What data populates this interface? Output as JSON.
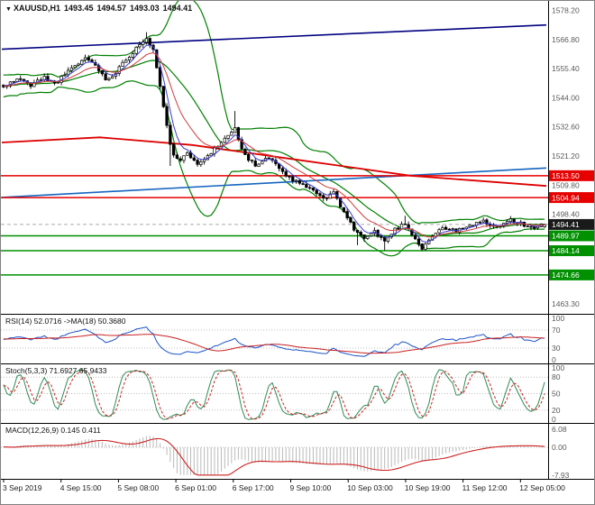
{
  "header": {
    "symbol": "XAUUSD,H1",
    "open": "1493.45",
    "high": "1494.57",
    "low": "1493.03",
    "close": "1494.41"
  },
  "price_axis": {
    "labels": [
      "1578.20",
      "1566.80",
      "1555.40",
      "1544.00",
      "1532.60",
      "1521.20",
      "1509.80",
      "1498.40",
      "1463.30"
    ],
    "badges": [
      {
        "value": "1513.50",
        "price": 1513.5,
        "color": "#e60000",
        "line": true,
        "current": false
      },
      {
        "value": "1504.94",
        "price": 1504.94,
        "color": "#e60000",
        "line": true,
        "current": false
      },
      {
        "value": "1494.41",
        "price": 1494.41,
        "color": "#1a1a1a",
        "line": false,
        "current": true
      },
      {
        "value": "1489.97",
        "price": 1489.97,
        "color": "#009000",
        "line": true,
        "current": false
      },
      {
        "value": "1484.14",
        "price": 1484.14,
        "color": "#009000",
        "line": true,
        "current": false
      },
      {
        "value": "1474.66",
        "price": 1474.66,
        "color": "#009000",
        "line": true,
        "current": false
      }
    ]
  },
  "time_axis": {
    "labels": [
      "3 Sep 2019",
      "4 Sep 15:00",
      "5 Sep 08:00",
      "6 Sep 01:00",
      "6 Sep 17:00",
      "9 Sep 10:00",
      "10 Sep 03:00",
      "10 Sep 19:00",
      "11 Sep 12:00",
      "12 Sep 05:00"
    ]
  },
  "indicators": {
    "rsi": {
      "label": "RSI(14) 52.0716 ->MA(18) 50.3680",
      "scale_labels": [
        "100",
        "70",
        "30",
        "0"
      ],
      "dotted_levels": [
        70,
        30
      ],
      "main_color": "#1a52c8",
      "ma_color": "#c82020"
    },
    "stoch": {
      "label": "Stoch(5,3,3) 71.6927 65.9433",
      "scale_labels": [
        "100",
        "80",
        "50",
        "20",
        "0"
      ],
      "dotted_levels": [
        80,
        50,
        20
      ],
      "k_color": "#2e8b57",
      "d_color": "#cc2222"
    },
    "macd": {
      "label": "MACD(12,26,9) 0.145 0.411",
      "scale_labels": [
        "6.08",
        "0.00",
        "-7.93"
      ],
      "hist_color": "#b9b9b9",
      "signal_color": "#cc2222",
      "clamp": [
        -7.93,
        6.08
      ]
    }
  },
  "chart_data": {
    "type": "candlestick",
    "symbol": "XAUUSD",
    "timeframe": "H1",
    "last_ohlc": {
      "open": 1493.45,
      "high": 1494.57,
      "low": 1493.03,
      "close": 1494.41
    },
    "bars": 160,
    "price_range": [
      1460.5,
      1580.5
    ],
    "close_anchors": [
      [
        0,
        1548
      ],
      [
        4,
        1551.5
      ],
      [
        8,
        1549
      ],
      [
        12,
        1552
      ],
      [
        15,
        1549.5
      ],
      [
        18,
        1553
      ],
      [
        21,
        1556.5
      ],
      [
        24,
        1559.5
      ],
      [
        27,
        1557
      ],
      [
        30,
        1551
      ],
      [
        33,
        1554
      ],
      [
        36,
        1559
      ],
      [
        39,
        1563.5
      ],
      [
        42,
        1567.5
      ],
      [
        44,
        1563
      ],
      [
        45,
        1556
      ],
      [
        46,
        1549
      ],
      [
        47,
        1541
      ],
      [
        48,
        1533
      ],
      [
        49,
        1526
      ],
      [
        50,
        1521
      ],
      [
        52,
        1519
      ],
      [
        54,
        1522.5
      ],
      [
        57,
        1518.5
      ],
      [
        60,
        1521.5
      ],
      [
        63,
        1525
      ],
      [
        66,
        1529.5
      ],
      [
        68,
        1533
      ],
      [
        69,
        1527.5
      ],
      [
        71,
        1521.5
      ],
      [
        74,
        1517.5
      ],
      [
        78,
        1520.5
      ],
      [
        82,
        1514.5
      ],
      [
        86,
        1511
      ],
      [
        90,
        1508.5
      ],
      [
        94,
        1504.5
      ],
      [
        97,
        1506.5
      ],
      [
        100,
        1499.5
      ],
      [
        103,
        1492.5
      ],
      [
        106,
        1489
      ],
      [
        109,
        1491.5
      ],
      [
        112,
        1487.8
      ],
      [
        115,
        1492.5
      ],
      [
        118,
        1494.8
      ],
      [
        121,
        1488.8
      ],
      [
        123,
        1485.2
      ],
      [
        126,
        1490
      ],
      [
        129,
        1493.2
      ],
      [
        133,
        1491.8
      ],
      [
        137,
        1493.8
      ],
      [
        141,
        1495.8
      ],
      [
        145,
        1493.2
      ],
      [
        149,
        1496.2
      ],
      [
        153,
        1494.2
      ],
      [
        156,
        1493.2
      ],
      [
        159,
        1494.41
      ]
    ],
    "wick_highs": [
      [
        42,
        1569.7
      ],
      [
        68,
        1538.8
      ],
      [
        118,
        1497.8
      ]
    ],
    "wick_lows": [
      [
        49,
        1517.3
      ],
      [
        104,
        1486.3
      ],
      [
        112,
        1484.3
      ],
      [
        123,
        1484.1
      ]
    ],
    "support_resistance": {
      "resistance": [
        1513.5,
        1504.94
      ],
      "support": [
        1489.97,
        1484.14,
        1474.66
      ]
    },
    "overlays": {
      "bollinger": {
        "period": 20,
        "deviation": 2,
        "color": "#008000"
      },
      "ema_fast": {
        "period": 5,
        "color": "#3a3ad0"
      },
      "ema_slow": {
        "period": 13,
        "color": "#d03a3a"
      },
      "trendlines": [
        {
          "name": "upper-channel-trendline",
          "color": "#000080",
          "width": 1.6,
          "points": [
            [
              0,
              1563.0
            ],
            [
              1,
              1572.5
            ]
          ]
        },
        {
          "name": "ascending-trendline",
          "color": "#1565c0",
          "width": 1.6,
          "points": [
            [
              0,
              1505.0
            ],
            [
              1,
              1516.5
            ]
          ]
        },
        {
          "name": "long-term-ma",
          "color": "#dd0000",
          "width": 1.8,
          "points": [
            [
              0,
              1526.5
            ],
            [
              0.18,
              1528.5
            ],
            [
              0.35,
              1525.5
            ],
            [
              0.55,
              1519.5
            ],
            [
              0.75,
              1513.5
            ],
            [
              1,
              1509.5
            ]
          ]
        }
      ]
    },
    "indicator_params": {
      "rsi": {
        "period": 14,
        "ma_period": 18
      },
      "stoch": {
        "k": 5,
        "d": 3,
        "slowing": 3
      },
      "macd": {
        "fast": 12,
        "slow": 26,
        "signal": 9
      }
    }
  }
}
